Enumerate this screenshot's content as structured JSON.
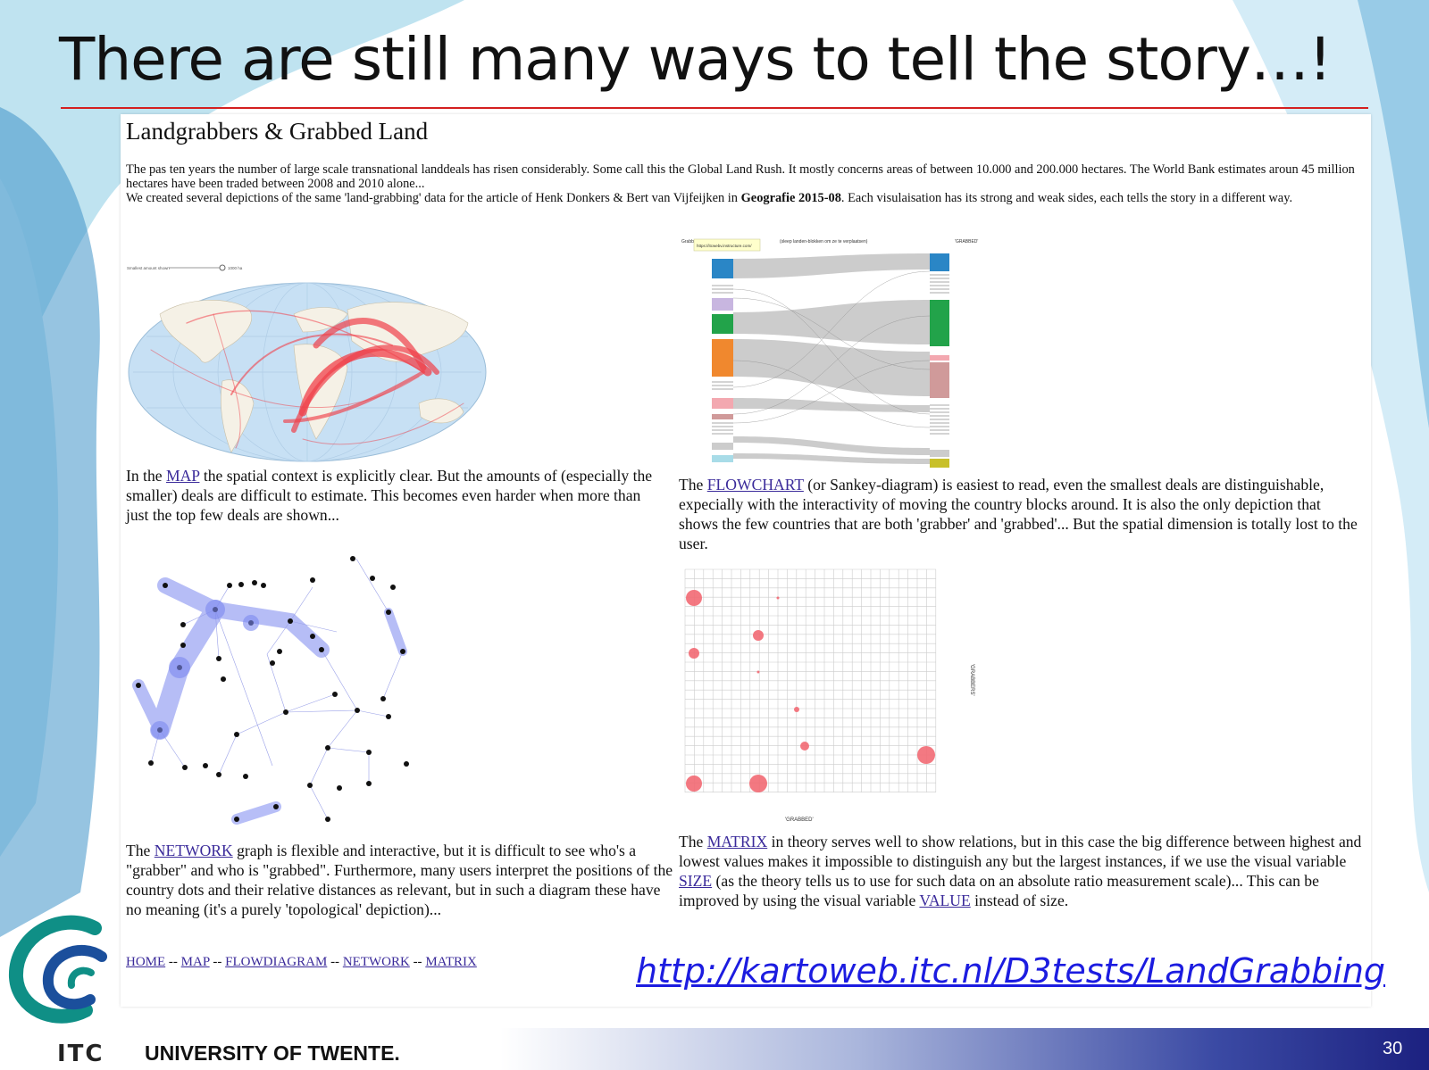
{
  "slide": {
    "title": "There are still many ways to tell the story…!",
    "url": "http://kartoweb.itc.nl/D3tests/LandGrabbing",
    "footer_university": "UNIVERSITY OF TWENTE.",
    "footer_itc": "ITC",
    "page_number": "30"
  },
  "page": {
    "heading": "Landgrabbers & Grabbed Land",
    "intro_p1": "The pas ten years the number of large scale transnational landdeals has risen considerably. Some call this the Global Land Rush. It mostly concerns areas of between 10.000 and 200.000 hectares. The World Bank estimates aroun 45 million hectares have been traded between 2008 and 2010 alone...",
    "intro_p2_a": "We created several depictions of the same 'land-grabbing' data for the article of Henk Donkers & Bert van Vijfeijken in ",
    "intro_p2_bold": "Geografie 2015-08",
    "intro_p2_b": ". Each visulaisation has its strong and weak sides, each tells the story in a different way.",
    "map": {
      "slider_label": "Smallest amount shown",
      "slider_value": "1000 ha",
      "desc_a": "In the ",
      "link": "MAP",
      "desc_b": " the spatial context is explicitly clear. But the amounts of (especially the smaller) deals are difficult to estimate. This becomes even harder when more than just the top few deals are shown..."
    },
    "flow": {
      "tooltip": "https://itcwebv.instructure.com/",
      "header_left": "Grabbers",
      "header_mid": "(sleep landen-blokken om ze te verplaatsen)",
      "header_right": "'GRABBED'",
      "desc_a": "The ",
      "link": "FLOWCHART",
      "desc_b": " (or Sankey-diagram) is easiest to read, even the smallest deals are distinguishable, expecially with the interactivity of moving the country blocks around. It is also the only depiction that shows the few countries that are both 'grabber' and 'grabbed'... But the spatial dimension is totally lost to the user."
    },
    "network": {
      "desc_a": "The ",
      "link": "NETWORK",
      "desc_b": " graph is flexible and interactive, but it is difficult to see who's a \"grabber\" and who is \"grabbed\". Furthermore, many users interpret the positions of the country dots and their relative distances as relevant, but in such a diagram these have no meaning (it's a purely 'topological' depiction)..."
    },
    "matrix": {
      "ylabel": "'GRABBERS'",
      "xlabel": "'GRABBED'",
      "desc_a": "The ",
      "link": "MATRIX",
      "desc_b": " in theory serves well to show relations, but in this case the big difference between highest and lowest values makes it impossible to distinguish any but the largest instances, if we use the visual variable ",
      "link_size": "SIZE",
      "desc_c": " (as the theory tells us to use for such data on an absolute ratio measurement scale)... This can be improved by using the visual variable ",
      "link_value": "VALUE",
      "desc_d": " instead of size."
    },
    "nav": {
      "home": "HOME",
      "map": "MAP",
      "flow": "FLOWDIAGRAM",
      "network": "NETWORK",
      "matrix": "MATRIX",
      "sep": "--"
    }
  },
  "colors": {
    "title_rule": "#d42020",
    "link": "#3a2a9a",
    "url": "#1c1ce0",
    "map_flow": "#f0404a",
    "network_blob": "#7c88f0",
    "matrix_dot": "#f26a74"
  }
}
